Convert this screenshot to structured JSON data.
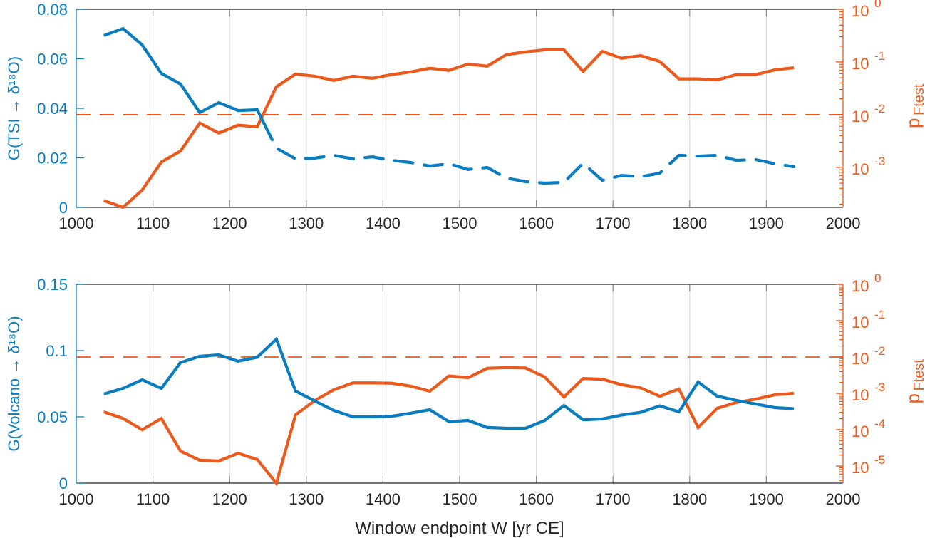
{
  "colors": {
    "blue": "#0A7DC0",
    "orange": "#EB5A1C",
    "grid": "#DADADA",
    "axis": "#262626"
  },
  "xlabel": "Window endpoint W [yr CE]",
  "chart_data": [
    {
      "type": "line",
      "panel": "top",
      "ylabel_left": "G(TSI → δ¹⁸O)",
      "ylabel_right_main": "p",
      "ylabel_right_sub": "Ftest",
      "xlim": [
        1000,
        2000
      ],
      "xticks": [
        1000,
        1100,
        1200,
        1300,
        1400,
        1500,
        1600,
        1700,
        1800,
        1900,
        2000
      ],
      "ylim_left": [
        0,
        0.08
      ],
      "yticks_left": [
        "0",
        "0.02",
        "0.04",
        "0.06",
        "0.08"
      ],
      "yticks_left_values": [
        0,
        0.02,
        0.04,
        0.06,
        0.08
      ],
      "ylim_right_log10": [
        -3.76,
        0
      ],
      "yticks_right_exponents": [
        "0",
        "-1",
        "-2",
        "-3"
      ],
      "grid": "x-major",
      "threshold_p": 0.01,
      "x": [
        1036,
        1061,
        1086,
        1111,
        1136,
        1161,
        1186,
        1211,
        1236,
        1261,
        1286,
        1311,
        1336,
        1361,
        1386,
        1411,
        1436,
        1461,
        1486,
        1511,
        1536,
        1561,
        1586,
        1611,
        1636,
        1661,
        1686,
        1711,
        1736,
        1761,
        1786,
        1811,
        1836,
        1861,
        1886,
        1911,
        1936
      ],
      "series": [
        {
          "name": "G (TSI)",
          "axis": "left",
          "values": [
            0.0694,
            0.0722,
            0.0656,
            0.0541,
            0.0498,
            0.0383,
            0.0423,
            0.0391,
            0.0394,
            0.0239,
            0.0196,
            0.0199,
            0.021,
            0.0196,
            0.0204,
            0.019,
            0.0181,
            0.0167,
            0.0176,
            0.0153,
            0.0161,
            0.0118,
            0.0104,
            0.0098,
            0.0101,
            0.0178,
            0.0109,
            0.0129,
            0.0124,
            0.0138,
            0.021,
            0.0207,
            0.021,
            0.019,
            0.0193,
            0.0176,
            0.0164
          ]
        },
        {
          "name": "p Ftest",
          "axis": "right-log",
          "log10_values": [
            -3.63,
            -3.76,
            -3.43,
            -2.9,
            -2.69,
            -2.16,
            -2.35,
            -2.2,
            -2.23,
            -1.47,
            -1.23,
            -1.27,
            -1.35,
            -1.27,
            -1.31,
            -1.24,
            -1.19,
            -1.12,
            -1.16,
            -1.04,
            -1.08,
            -0.86,
            -0.81,
            -0.77,
            -0.77,
            -1.18,
            -0.8,
            -0.93,
            -0.88,
            -0.99,
            -1.32,
            -1.32,
            -1.34,
            -1.24,
            -1.24,
            -1.15,
            -1.11
          ]
        }
      ]
    },
    {
      "type": "line",
      "panel": "bottom",
      "ylabel_left": "G(Volcano → δ¹⁸O)",
      "ylabel_right_main": "p",
      "ylabel_right_sub": "Ftest",
      "xlim": [
        1000,
        2000
      ],
      "xticks": [
        1000,
        1100,
        1200,
        1300,
        1400,
        1500,
        1600,
        1700,
        1800,
        1900,
        2000
      ],
      "ylim_left": [
        0,
        0.15
      ],
      "yticks_left": [
        "0",
        "0.05",
        "0.1",
        "0.15"
      ],
      "yticks_left_values": [
        0,
        0.05,
        0.1,
        0.15
      ],
      "ylim_right_log10": [
        -5.47,
        0
      ],
      "yticks_right_exponents": [
        "0",
        "-1",
        "-2",
        "-3",
        "-4",
        "-5"
      ],
      "grid": "x-major",
      "threshold_p": 0.01,
      "x": [
        1036,
        1061,
        1086,
        1111,
        1136,
        1161,
        1186,
        1211,
        1236,
        1261,
        1286,
        1311,
        1336,
        1361,
        1386,
        1411,
        1436,
        1461,
        1486,
        1511,
        1536,
        1561,
        1586,
        1611,
        1636,
        1661,
        1686,
        1711,
        1736,
        1761,
        1786,
        1811,
        1836,
        1861,
        1886,
        1911,
        1936
      ],
      "series": [
        {
          "name": "G (Volcano)",
          "axis": "left",
          "values": [
            0.0672,
            0.0715,
            0.078,
            0.0715,
            0.091,
            0.0957,
            0.0968,
            0.092,
            0.095,
            0.1086,
            0.0694,
            0.062,
            0.0548,
            0.05,
            0.05,
            0.0504,
            0.0527,
            0.0554,
            0.0464,
            0.0473,
            0.042,
            0.0414,
            0.0414,
            0.0473,
            0.0586,
            0.0478,
            0.0484,
            0.0513,
            0.0534,
            0.0583,
            0.0538,
            0.0763,
            0.0656,
            0.0624,
            0.0597,
            0.057,
            0.0561
          ]
        },
        {
          "name": "p Ftest",
          "axis": "right-log",
          "log10_values": [
            -3.51,
            -3.69,
            -4.0,
            -3.69,
            -4.59,
            -4.84,
            -4.86,
            -4.65,
            -4.82,
            -5.47,
            -3.59,
            -3.2,
            -2.9,
            -2.71,
            -2.71,
            -2.72,
            -2.8,
            -2.94,
            -2.52,
            -2.57,
            -2.31,
            -2.29,
            -2.3,
            -2.55,
            -3.1,
            -2.59,
            -2.61,
            -2.76,
            -2.85,
            -3.08,
            -2.88,
            -3.94,
            -3.41,
            -3.25,
            -3.16,
            -3.04,
            -3.0
          ]
        }
      ]
    }
  ]
}
